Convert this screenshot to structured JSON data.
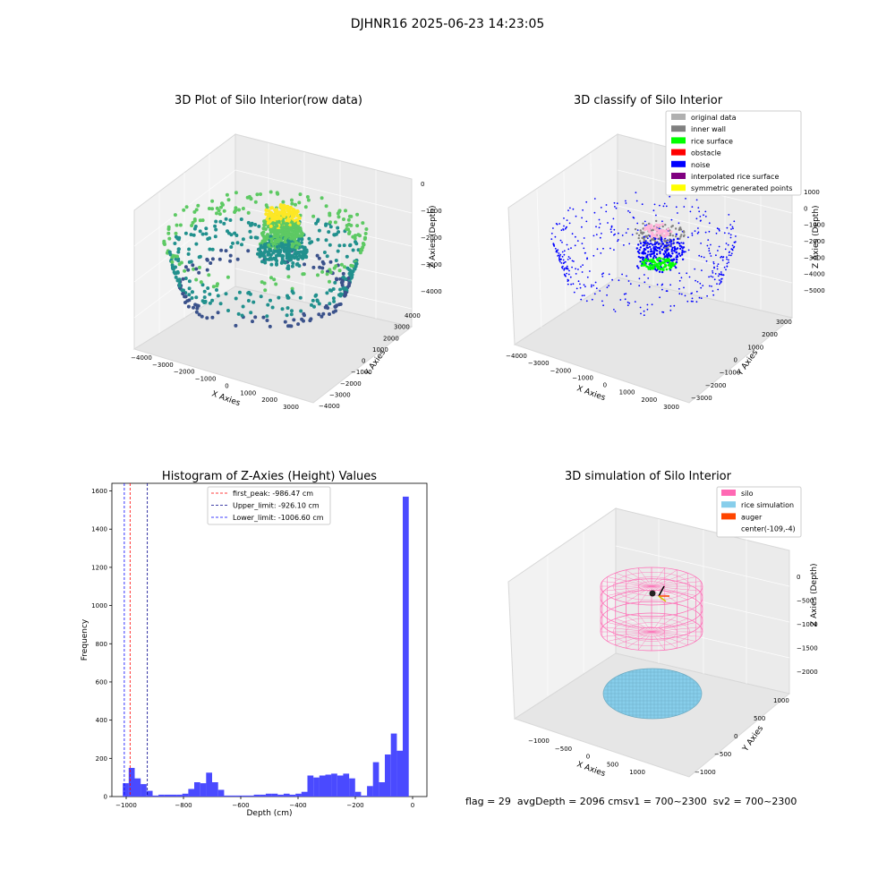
{
  "suptitle": "DJHNR16 2025-06-23 14:23:05",
  "status": {
    "flag": "flag = 29",
    "avg": "avgDepth = 2096 cmsv1 = 700~2300",
    "sv2": "sv2 = 700~2300"
  },
  "chart_data": [
    {
      "type": "scatter",
      "title": "3D Plot of Silo Interior(row data)",
      "xlabel": "X Axies",
      "ylabel": "Y Axies",
      "zlabel": "Z Axies (Depth)",
      "xticks": [
        "−4000",
        "−3000",
        "−2000",
        "−1000",
        "0",
        "1000",
        "2000",
        "3000"
      ],
      "yticks": [
        "−4000",
        "−3000",
        "−2000",
        "−1000",
        "0",
        "1000",
        "2000",
        "3000",
        "4000"
      ],
      "zticks": [
        "0",
        "−1000",
        "−2000",
        "−3000",
        "−4000"
      ],
      "colormap": [
        "#440154",
        "#3b528b",
        "#21908d",
        "#5dc963",
        "#fde725"
      ]
    },
    {
      "type": "scatter",
      "title": "3D classify of Silo Interior",
      "xlabel": "X Axies",
      "ylabel": "Y Axies",
      "zlabel": "Z Axies (Depth)",
      "xticks": [
        "−4000",
        "−3000",
        "−2000",
        "−1000",
        "0",
        "1000",
        "2000",
        "3000"
      ],
      "yticks": [
        "−3000",
        "−2000",
        "−1000",
        "0",
        "1000",
        "2000",
        "3000"
      ],
      "zticks": [
        "1000",
        "0",
        "−1000",
        "−2000",
        "−3000",
        "−4000",
        "−5000"
      ],
      "legend": [
        {
          "label": "original data",
          "color": "#b0b0b0"
        },
        {
          "label": "inner wall",
          "color": "#808080"
        },
        {
          "label": "rice surface",
          "color": "#00ff00"
        },
        {
          "label": "obstacle",
          "color": "#ff0000"
        },
        {
          "label": "noise",
          "color": "#0000ff"
        },
        {
          "label": "interpolated rice surface",
          "color": "#800080"
        },
        {
          "label": "symmetric generated points",
          "color": "#ffff00"
        }
      ],
      "legend_position": "top-right"
    },
    {
      "type": "bar",
      "title": "Histogram of Z-Axies (Height) Values",
      "xlabel": "Depth (cm)",
      "ylabel": "Frequency",
      "xlim": [
        -1050,
        50
      ],
      "ylim": [
        0,
        1640
      ],
      "xticks": [
        -1000,
        -800,
        -600,
        -400,
        -200,
        0
      ],
      "yticks": [
        0,
        200,
        400,
        600,
        800,
        1000,
        1200,
        1400,
        1600
      ],
      "bin_width": 20.8,
      "bins_start": [
        -1012,
        -991.2,
        -970.4,
        -949.6,
        -928.8,
        -908,
        -887.2,
        -866.4,
        -845.6,
        -824.8,
        -804,
        -783.2,
        -762.4,
        -741.6,
        -720.8,
        -700,
        -679.2,
        -658.4,
        -637.6,
        -616.8,
        -596,
        -575.2,
        -554.4,
        -533.6,
        -512.8,
        -492,
        -471.2,
        -450.4,
        -429.6,
        -408.8,
        -388,
        -367.2,
        -346.4,
        -325.6,
        -304.8,
        -284,
        -263.2,
        -242.4,
        -221.6,
        -200.8,
        -180,
        -159.2,
        -138.4,
        -117.6,
        -96.8,
        -76,
        -55.2,
        -34.4,
        -13.6
      ],
      "values": [
        70,
        150,
        95,
        65,
        30,
        5,
        10,
        10,
        10,
        10,
        15,
        40,
        75,
        70,
        125,
        75,
        35,
        5,
        5,
        5,
        5,
        5,
        10,
        10,
        15,
        15,
        10,
        15,
        10,
        15,
        25,
        110,
        100,
        110,
        115,
        120,
        110,
        120,
        95,
        25,
        5,
        55,
        180,
        75,
        220,
        330,
        240,
        1570,
        0
      ],
      "vlines": [
        {
          "x": -986.47,
          "color": "#ff0000",
          "label": "first_peak: -986.47 cm"
        },
        {
          "x": -926.1,
          "color": "#00008b",
          "label": "Upper_limit: -926.10 cm"
        },
        {
          "x": -1006.6,
          "color": "#0000ff",
          "label": "Lower_limit: -1006.60 cm"
        }
      ],
      "bar_color": "#4a4aff",
      "legend_position": "top-center"
    },
    {
      "type": "scatter",
      "title": "3D simulation of Silo Interior",
      "xlabel": "X Axies",
      "ylabel": "Y Axies",
      "zlabel": "Z Axies (Depth)",
      "xticks": [
        "−1000",
        "−500",
        "0",
        "500",
        "1000"
      ],
      "yticks": [
        "−1000",
        "−500",
        "0",
        "500",
        "1000"
      ],
      "zticks": [
        "0",
        "−500",
        "−1000",
        "−1500",
        "−2000"
      ],
      "legend": [
        {
          "label": "silo",
          "color": "#ff69b4"
        },
        {
          "label": "rice simulation",
          "color": "#87ceeb"
        },
        {
          "label": "auger",
          "color": "#ff4500"
        },
        {
          "label": "center(-109,-4)",
          "color": ""
        }
      ],
      "legend_position": "top-right"
    }
  ]
}
